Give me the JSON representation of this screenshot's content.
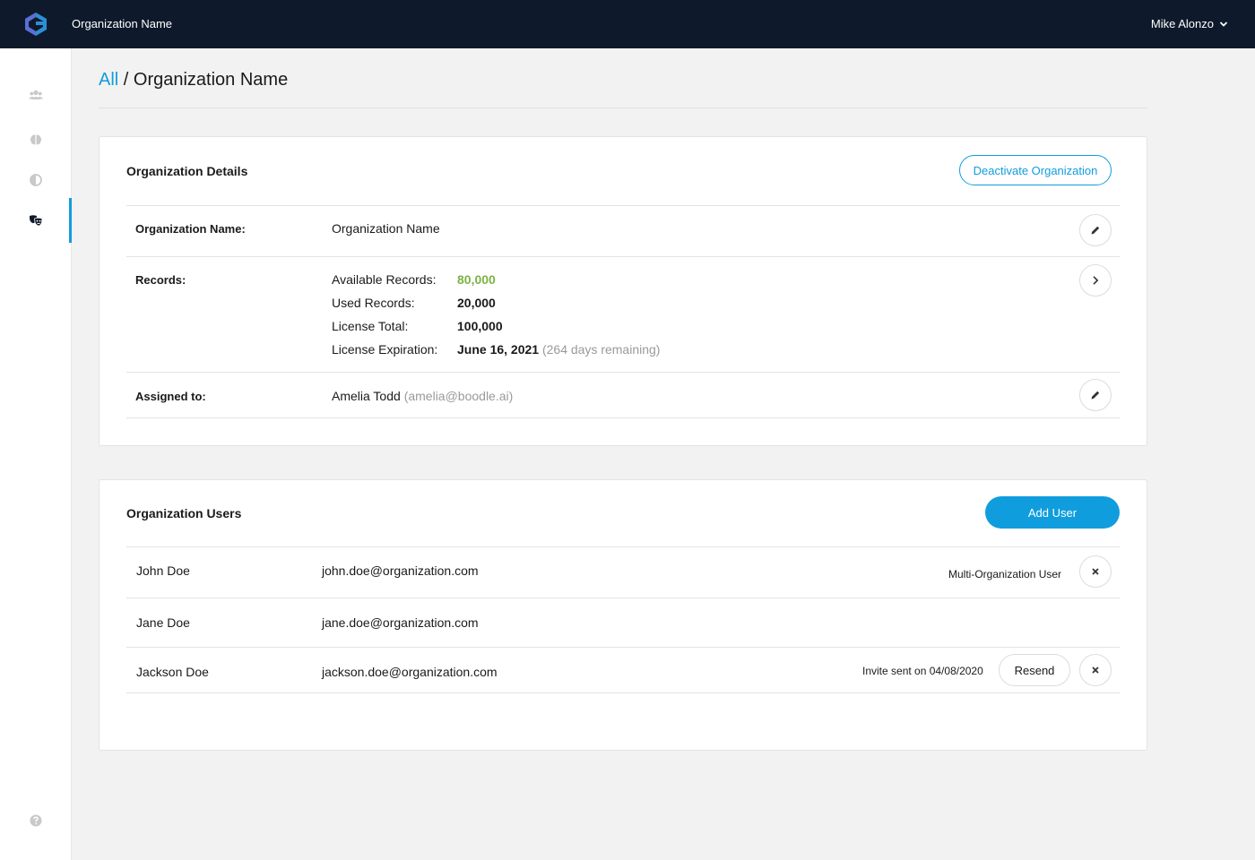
{
  "topbar": {
    "org_title": "Organization Name",
    "user_name": "Mike Alonzo"
  },
  "sidebar": {
    "items": [
      {
        "icon": "users-icon"
      },
      {
        "icon": "brain-icon"
      },
      {
        "icon": "contrast-icon"
      },
      {
        "icon": "masks-icon",
        "active": true
      },
      {
        "icon": "help-icon"
      }
    ]
  },
  "breadcrumb": {
    "root": "All",
    "separator": " / ",
    "current": "Organization Name"
  },
  "details": {
    "title": "Organization Details",
    "deactivate_label": "Deactivate Organization",
    "name_label": "Organization Name:",
    "name_value": "Organization Name",
    "records_label": "Records:",
    "available_label": "Available Records:",
    "available_value": "80,000",
    "used_label": "Used Records:",
    "used_value": "20,000",
    "total_label": "License Total:",
    "total_value": "100,000",
    "expiration_label": "License Expiration:",
    "expiration_value": "June 16, 2021",
    "expiration_remaining": "(264 days remaining)",
    "assigned_label": "Assigned to:",
    "assigned_name": "Amelia Todd",
    "assigned_email": "(amelia@boodle.ai)"
  },
  "users": {
    "title": "Organization Users",
    "add_label": "Add User",
    "rows": [
      {
        "name": "John Doe",
        "email": "john.doe@organization.com",
        "note": "Multi-Organization User"
      },
      {
        "name": "Jane Doe",
        "email": "jane.doe@organization.com",
        "note": ""
      },
      {
        "name": "Jackson Doe",
        "email": "jackson.doe@organization.com",
        "note": "Invite sent on 04/08/2020",
        "resend_label": "Resend"
      }
    ]
  },
  "colors": {
    "accent": "#109ddd",
    "topbar": "#0e1a2b",
    "positive": "#7cb342"
  }
}
